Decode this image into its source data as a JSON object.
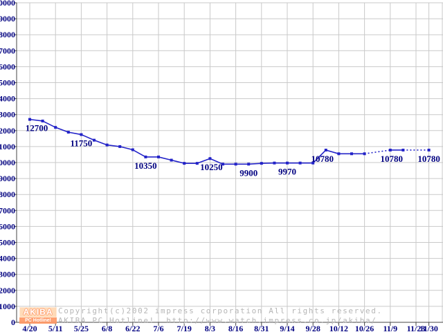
{
  "chart_data": {
    "type": "line",
    "title": "",
    "series_name": "price",
    "grid": true,
    "legend": "none",
    "y_axis": {
      "min": 0,
      "max": 20000,
      "step": 1000
    },
    "x_ticks": [
      {
        "label": "4/20",
        "slot": 0
      },
      {
        "label": "5/11",
        "slot": 2
      },
      {
        "label": "5/25",
        "slot": 4
      },
      {
        "label": "6/8",
        "slot": 6
      },
      {
        "label": "6/22",
        "slot": 8
      },
      {
        "label": "7/6",
        "slot": 10
      },
      {
        "label": "7/19",
        "slot": 12
      },
      {
        "label": "8/3",
        "slot": 14
      },
      {
        "label": "8/16",
        "slot": 16
      },
      {
        "label": "8/31",
        "slot": 18
      },
      {
        "label": "9/14",
        "slot": 20
      },
      {
        "label": "9/28",
        "slot": 22
      },
      {
        "label": "10/12",
        "slot": 24
      },
      {
        "label": "10/26",
        "slot": 26
      },
      {
        "label": "11/9",
        "slot": 28
      },
      {
        "label": "11/23",
        "slot": 30
      },
      {
        "label": "11/30",
        "slot": 31
      }
    ],
    "points": [
      {
        "slot": 0,
        "value": 12700
      },
      {
        "slot": 1,
        "value": 12600
      },
      {
        "slot": 2,
        "value": 12200
      },
      {
        "slot": 3,
        "value": 11900
      },
      {
        "slot": 4,
        "value": 11750
      },
      {
        "slot": 5,
        "value": 11400
      },
      {
        "slot": 6,
        "value": 11100
      },
      {
        "slot": 7,
        "value": 11000
      },
      {
        "slot": 8,
        "value": 10800
      },
      {
        "slot": 9,
        "value": 10350
      },
      {
        "slot": 10,
        "value": 10350
      },
      {
        "slot": 11,
        "value": 10150
      },
      {
        "slot": 12,
        "value": 9950
      },
      {
        "slot": 13,
        "value": 9950
      },
      {
        "slot": 14,
        "value": 10250
      },
      {
        "slot": 15,
        "value": 9900
      },
      {
        "slot": 16,
        "value": 9900
      },
      {
        "slot": 17,
        "value": 9900
      },
      {
        "slot": 18,
        "value": 9950
      },
      {
        "slot": 19,
        "value": 9970
      },
      {
        "slot": 20,
        "value": 9970
      },
      {
        "slot": 21,
        "value": 9970
      },
      {
        "slot": 22,
        "value": 9970
      },
      {
        "slot": 23,
        "value": 10780
      },
      {
        "slot": 24,
        "value": 10550
      },
      {
        "slot": 25,
        "value": 10550
      },
      {
        "slot": 26,
        "value": 10550
      },
      {
        "slot": 28,
        "value": 10780
      },
      {
        "slot": 29,
        "value": 10780
      },
      {
        "slot": 31,
        "value": 10780
      }
    ],
    "dashed_segments": [
      [
        26,
        28
      ],
      [
        29,
        31
      ]
    ],
    "annotations": [
      {
        "slot": 0,
        "text": "12700",
        "dx": 10
      },
      {
        "slot": 4,
        "text": "11750",
        "dx": 0
      },
      {
        "slot": 9,
        "text": "10350",
        "dx": 0
      },
      {
        "slot": 14,
        "text": "10250",
        "dx": 2
      },
      {
        "slot": 17,
        "text": "9900",
        "dx": 0
      },
      {
        "slot": 20,
        "text": "9970",
        "dx": 0
      },
      {
        "slot": 23,
        "text": "10780",
        "dx": -5
      },
      {
        "slot": 28,
        "text": "10780",
        "dx": 2
      },
      {
        "slot": 31,
        "text": "10780",
        "dx": 0
      }
    ],
    "colors": {
      "line": "#2323c8",
      "marker": "#2323c8",
      "axis_text": "#000080",
      "annotation_text": "#000080",
      "grid": "#c9c9c9",
      "axis": "#444444"
    }
  },
  "footer": {
    "copyright_line1": "Copyright(c)2002 impress corporation All rights reserved.",
    "copyright_line2": "AKIBA PC Hotline!  http://www.watch.impress.co.jp/akiba/",
    "logo": {
      "title": "AKIBA",
      "subtitle": "PC Hotline!"
    }
  }
}
